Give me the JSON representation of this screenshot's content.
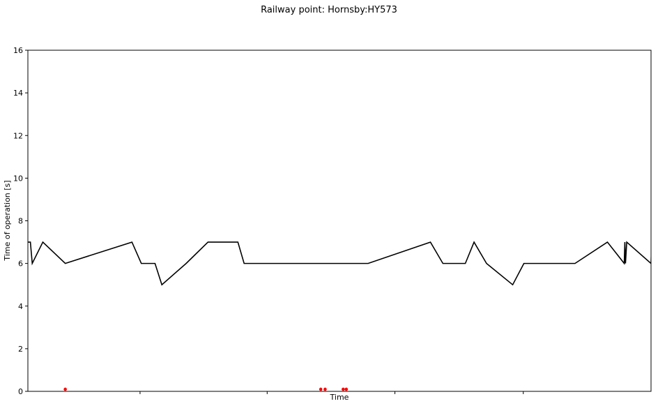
{
  "chart_data": {
    "type": "line",
    "title": "Railway point: Hornsby:HY573",
    "xlabel": "Time",
    "ylabel": "Time of operation [s]",
    "ylim": [
      0,
      16
    ],
    "yticks": [
      0,
      2,
      4,
      6,
      8,
      10,
      12,
      14,
      16
    ],
    "xlim": [
      0,
      1000
    ],
    "xticks": [
      180,
      384,
      589,
      795
    ],
    "grid": false,
    "line_color": "#000000",
    "marker_color": "#ff0000",
    "series": [
      {
        "x": [
          0,
          4,
          7,
          24,
          60,
          167,
          182,
          204,
          215,
          254,
          289,
          337,
          347,
          403,
          546,
          646,
          666,
          702,
          716,
          736,
          778,
          796,
          878,
          930,
          957,
          958,
          959,
          961,
          1000,
          1001
        ],
        "y": [
          7,
          7,
          6,
          7,
          6,
          7,
          6,
          6,
          5,
          6,
          7,
          7,
          6,
          6,
          6,
          7,
          6,
          6,
          7,
          6,
          5,
          6,
          6,
          7,
          6,
          7,
          6,
          7,
          6,
          7
        ]
      }
    ],
    "markers": {
      "x": [
        60,
        470,
        477,
        506,
        511
      ],
      "y": [
        0.1,
        0.1,
        0.1,
        0.1,
        0.1
      ]
    }
  }
}
